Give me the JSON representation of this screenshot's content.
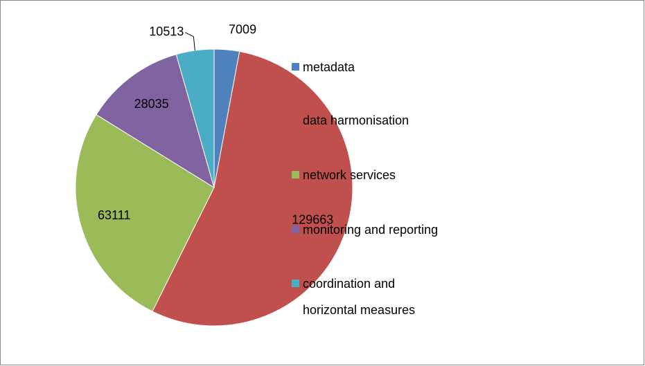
{
  "chart_data": {
    "type": "pie",
    "categories": [
      "metadata",
      "data harmonisation",
      "network services",
      "monitoring and reporting",
      "coordination and horizontal measures"
    ],
    "values": [
      7009,
      129663,
      63111,
      28035,
      10513
    ],
    "colors": [
      "#4f81bd",
      "#c0504d",
      "#9bbb59",
      "#8064a2",
      "#4bacc6"
    ],
    "legend": "right"
  }
}
